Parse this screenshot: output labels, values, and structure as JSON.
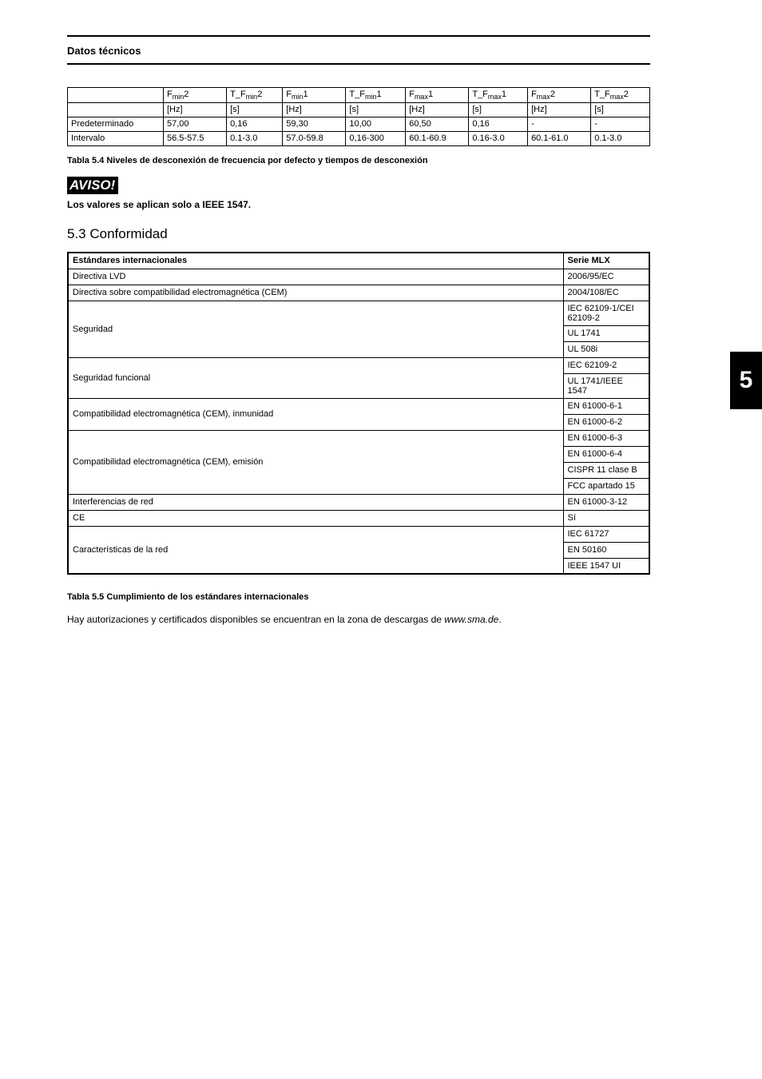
{
  "section_header": "Datos técnicos",
  "side_tab": "5",
  "table1": {
    "columns": [
      {
        "line1_html": "F<sub class='sub'>min</sub>2",
        "line2": "[Hz]"
      },
      {
        "line1_html": "T_F<sub class='sub'>min</sub>2",
        "line2": "[s]"
      },
      {
        "line1_html": "F<sub class='sub'>min</sub>1",
        "line2": "[Hz]"
      },
      {
        "line1_html": "T_F<sub class='sub'>min</sub>1",
        "line2": "[s]"
      },
      {
        "line1_html": "F<sub class='sub'>max</sub>1",
        "line2": "[Hz]"
      },
      {
        "line1_html": "T_F<sub class='sub'>max</sub>1",
        "line2": "[s]"
      },
      {
        "line1_html": "F<sub class='sub'>max</sub>2",
        "line2": "[Hz]"
      },
      {
        "line1_html": "T_F<sub class='sub'>max</sub>2",
        "line2": "[s]"
      }
    ],
    "rows": [
      {
        "label": "Predeterminado",
        "cells": [
          "57,00",
          "0,16",
          "59,30",
          "10,00",
          "60,50",
          "0,16",
          "-",
          "-"
        ]
      },
      {
        "label": "Intervalo",
        "cells": [
          "56.5-57.5",
          "0.1-3.0",
          "57.0-59.8",
          "0,16-300",
          "60.1-60.9",
          "0.16-3.0",
          "60.1-61.0",
          "0.1-3.0"
        ]
      }
    ],
    "caption": "Tabla 5.4 Niveles de desconexión de frecuencia por defecto y tiempos de desconexión"
  },
  "aviso": {
    "label": "AVISO!",
    "text": "Los valores se aplican solo a IEEE 1547."
  },
  "h53": "5.3  Conformidad",
  "table2": {
    "header": {
      "c1": "Estándares internacionales",
      "c2": "Serie MLX"
    },
    "rows": [
      {
        "label": "Directiva LVD",
        "values": [
          "2006/95/EC"
        ]
      },
      {
        "label": "Directiva sobre compatibilidad electromagnética (CEM)",
        "values": [
          "2004/108/EC"
        ]
      },
      {
        "label": "Seguridad",
        "values": [
          "IEC 62109-1/CEI 62109-2",
          "UL 1741",
          "UL 508i"
        ]
      },
      {
        "label": "Seguridad funcional",
        "values": [
          "IEC 62109-2",
          "UL 1741/IEEE 1547"
        ]
      },
      {
        "label": "Compatibilidad electromagnética (CEM), inmunidad",
        "values": [
          "EN 61000-6-1",
          "EN 61000-6-2"
        ]
      },
      {
        "label": "Compatibilidad electromagnética (CEM), emisión",
        "values": [
          "EN 61000-6-3",
          "EN 61000-6-4",
          "CISPR 11 clase B",
          "FCC apartado 15"
        ]
      },
      {
        "label": "Interferencias de red",
        "values": [
          "EN 61000-3-12"
        ]
      },
      {
        "label": "CE",
        "values": [
          "Sí"
        ]
      },
      {
        "label": "Características de la red",
        "values": [
          "IEC 61727",
          "EN 50160",
          "IEEE 1547 UI"
        ]
      }
    ],
    "caption": "Tabla 5.5 Cumplimiento de los estándares internacionales"
  },
  "body_text": "Hay autorizaciones y certificados disponibles se encuentran en la zona de descargas de <i>www.sma.de</i>."
}
